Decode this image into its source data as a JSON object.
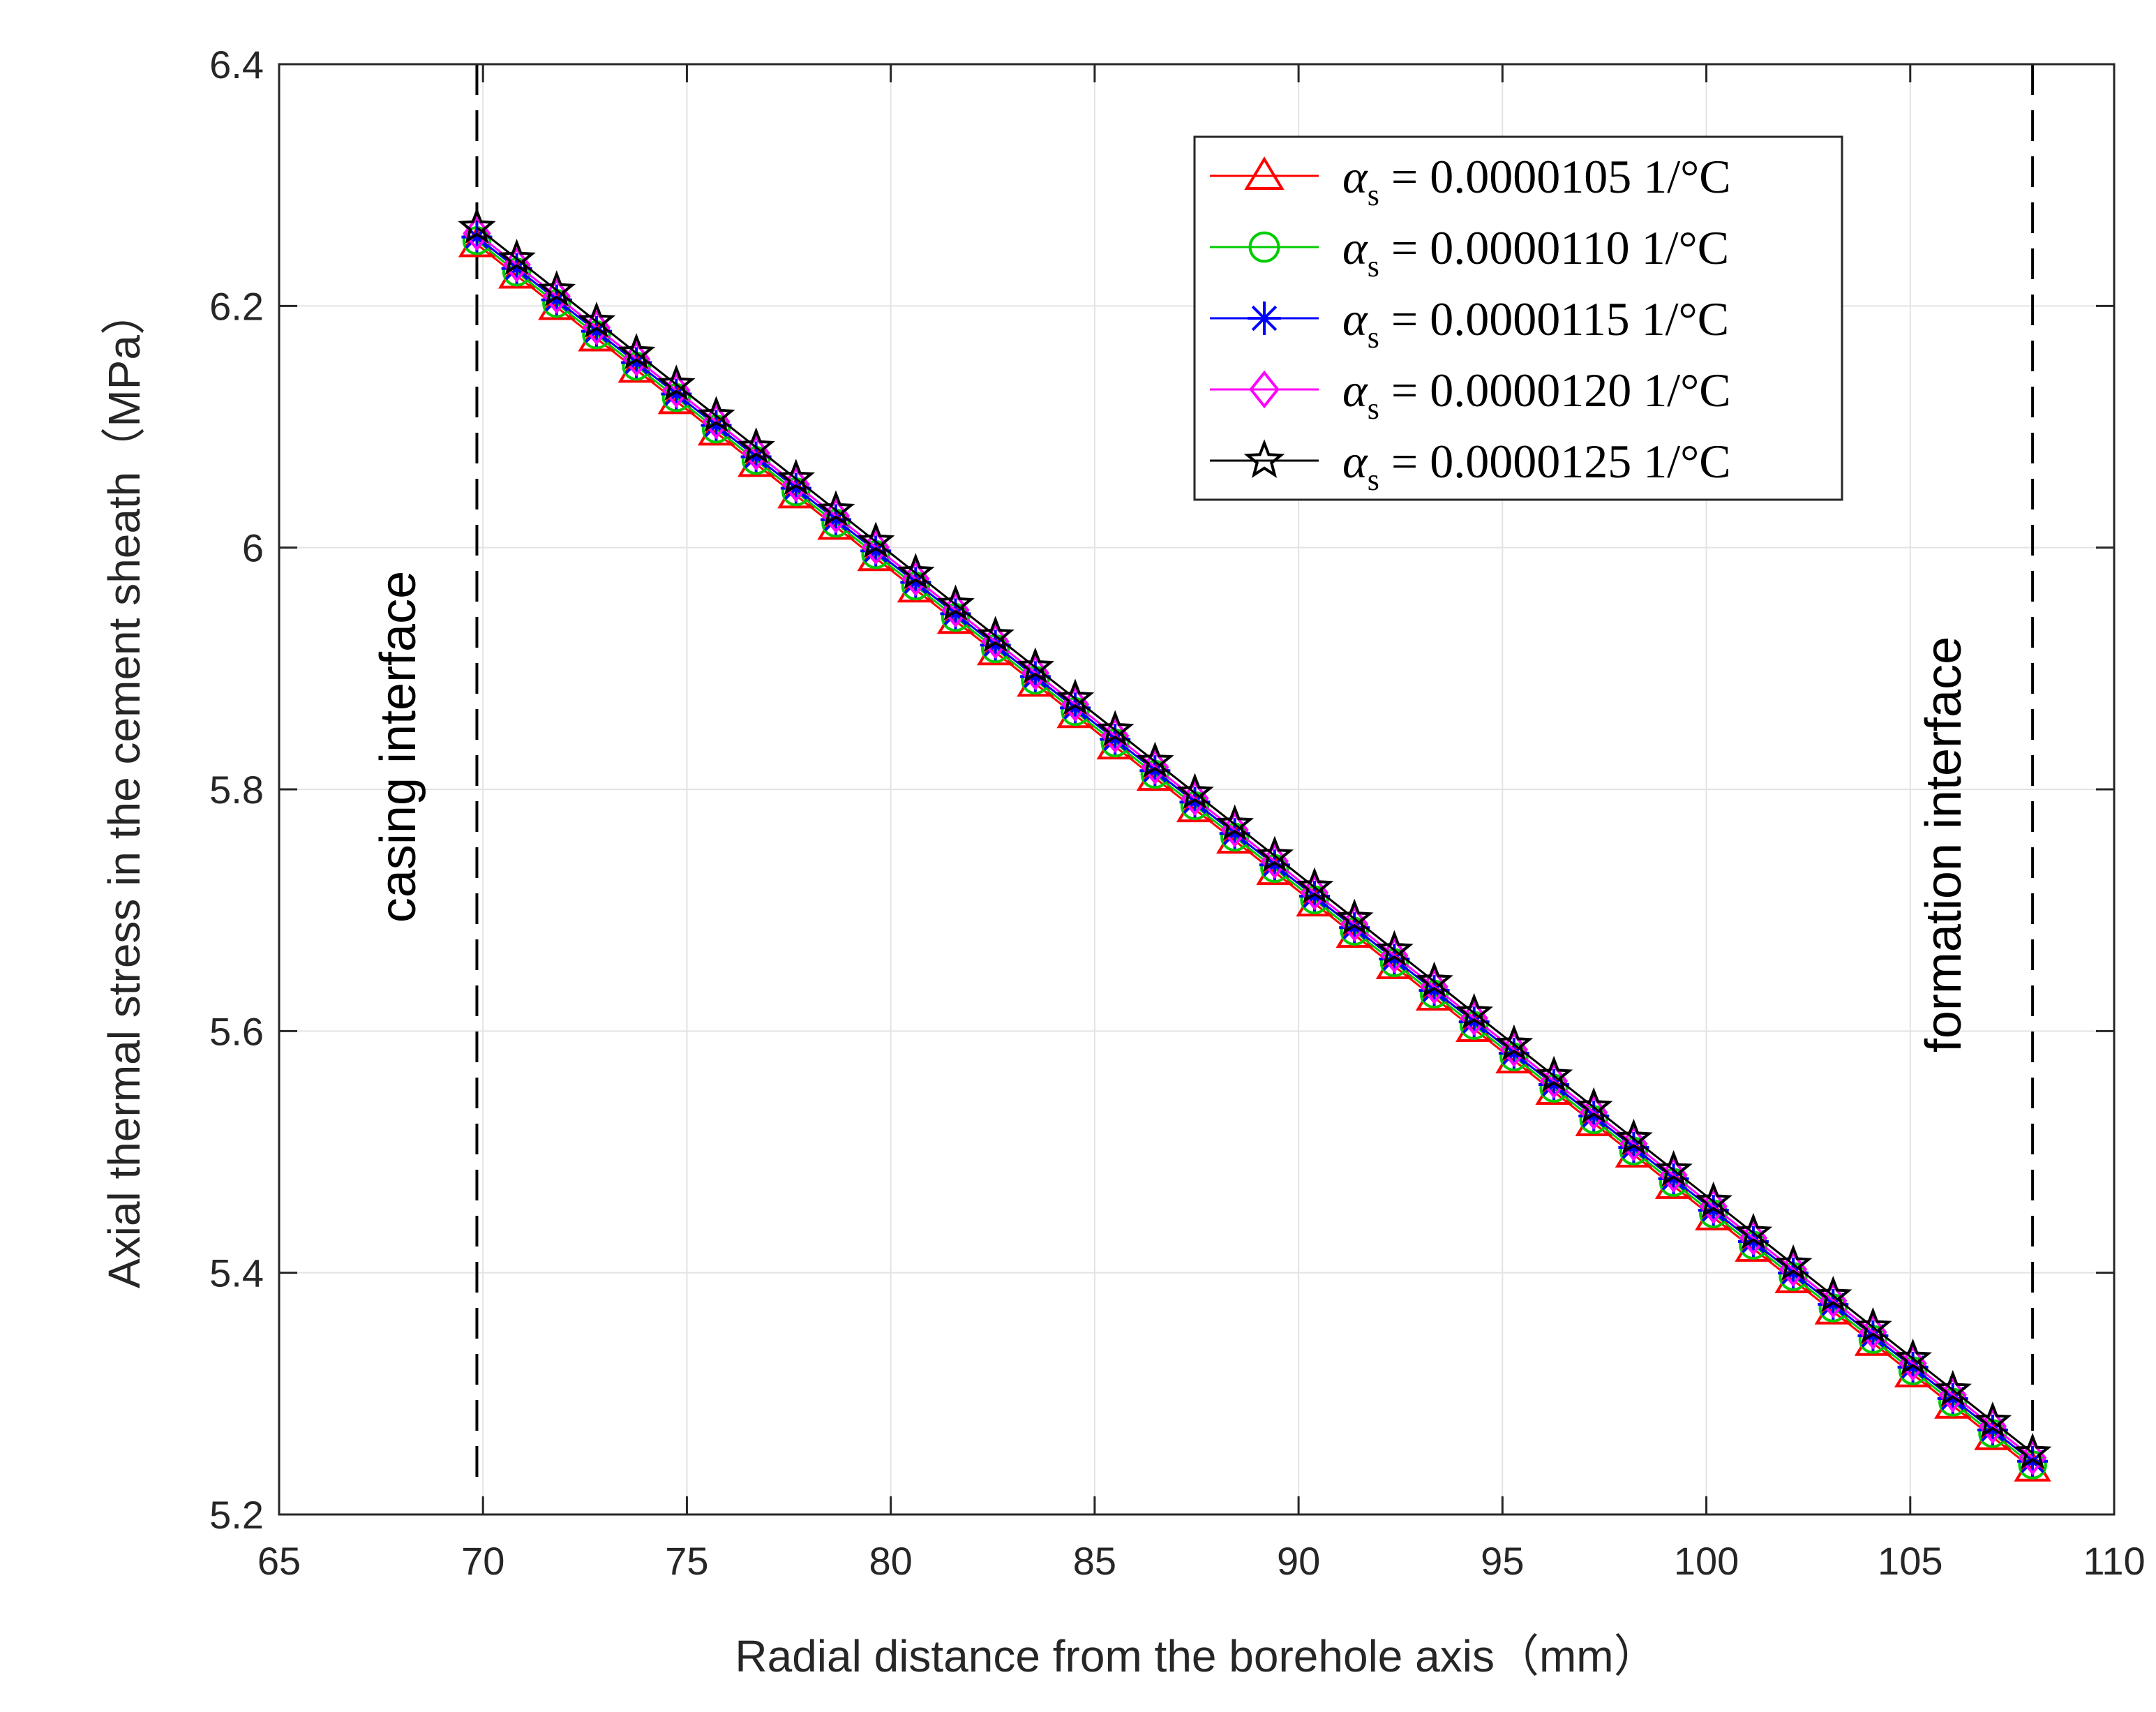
{
  "chart_data": {
    "type": "line",
    "title": "",
    "xlabel": "Radial distance from the borehole axis（mm）",
    "ylabel": "Axial thermal stress in the cement sheath（MPa）",
    "xlim": [
      65,
      110
    ],
    "ylim": [
      5.2,
      6.4
    ],
    "xticks": [
      65,
      70,
      75,
      80,
      85,
      90,
      95,
      100,
      105,
      110
    ],
    "yticks": [
      5.2,
      5.4,
      5.6,
      5.8,
      6,
      6.2,
      6.4
    ],
    "xtick_labels": [
      "65",
      "70",
      "75",
      "80",
      "85",
      "90",
      "95",
      "100",
      "105",
      "110"
    ],
    "ytick_labels": [
      "5.2",
      "5.4",
      "5.6",
      "5.8",
      "6",
      "6.2",
      "6.4"
    ],
    "grid": true,
    "legend_position": "top-right",
    "x_start": 69.85,
    "x_end": 108,
    "n_points": 40,
    "series": [
      {
        "name": "αs = 0.0000105 1/°C",
        "legend_value": "0.0000105 1/°C",
        "color": "#ff0000",
        "marker": "triangle",
        "y_start": 6.251,
        "y_end": 5.238
      },
      {
        "name": "αs = 0.0000110 1/°C",
        "legend_value": "0.0000110 1/°C",
        "color": "#00cc00",
        "marker": "circle",
        "y_start": 6.254,
        "y_end": 5.241
      },
      {
        "name": "αs = 0.0000115 1/°C",
        "legend_value": "0.0000115 1/°C",
        "color": "#0000ff",
        "marker": "asterisk",
        "y_start": 6.257,
        "y_end": 5.244
      },
      {
        "name": "αs = 0.0000120 1/°C",
        "legend_value": "0.0000120 1/°C",
        "color": "#ff00ff",
        "marker": "diamond",
        "y_start": 6.26,
        "y_end": 5.247
      },
      {
        "name": "αs = 0.0000125 1/°C",
        "legend_value": "0.0000125 1/°C",
        "color": "#000000",
        "marker": "star",
        "y_start": 6.265,
        "y_end": 5.251
      }
    ],
    "legend_symbol": "α",
    "legend_subscript": "s",
    "legend_equals": " = ",
    "vlines": [
      {
        "x": 69.85,
        "label": "casing interface"
      },
      {
        "x": 108,
        "label": "formation interface"
      }
    ]
  }
}
